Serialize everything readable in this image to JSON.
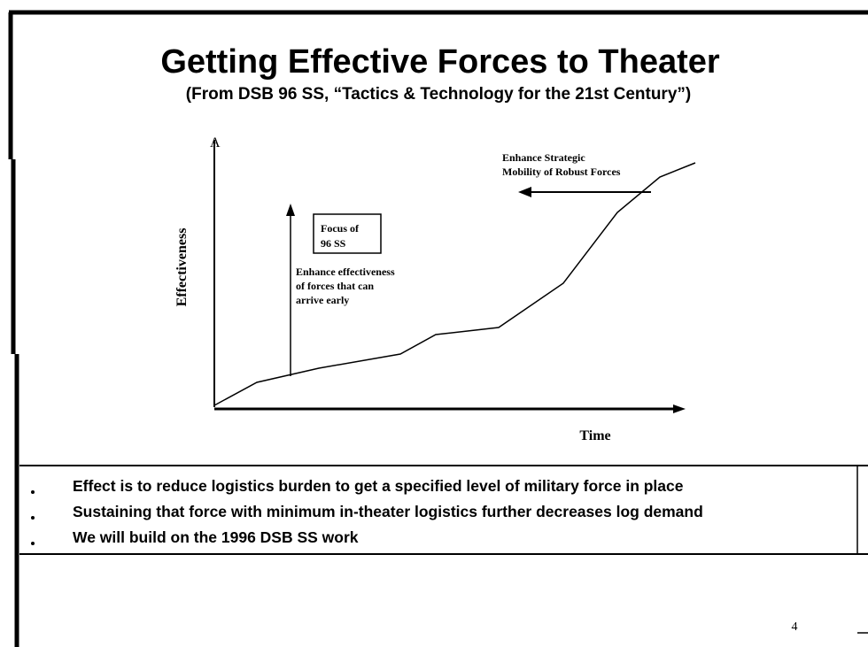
{
  "header": {
    "title": "Getting Effective Forces to Theater",
    "subtitle": "(From DSB 96 SS, “Tactics & Technology for the 21st Century”)"
  },
  "diagram": {
    "y_axis_label": "Effectiveness",
    "y_axis_tip": "A",
    "x_axis_label": "Time",
    "focus_box": [
      "Focus of",
      "96 SS"
    ],
    "early_note": [
      "Enhance effectiveness",
      "of forces that can",
      "arrive early"
    ],
    "mobility_note": [
      "Enhance Strategic",
      "Mobility of Robust Forces"
    ]
  },
  "bullets": [
    "Effect is to reduce logistics burden to get a specified level of military force in place",
    "Sustaining that force with minimum in-theater logistics further decreases log demand",
    "We will build on the 1996 DSB SS work"
  ],
  "page_number": 4
}
